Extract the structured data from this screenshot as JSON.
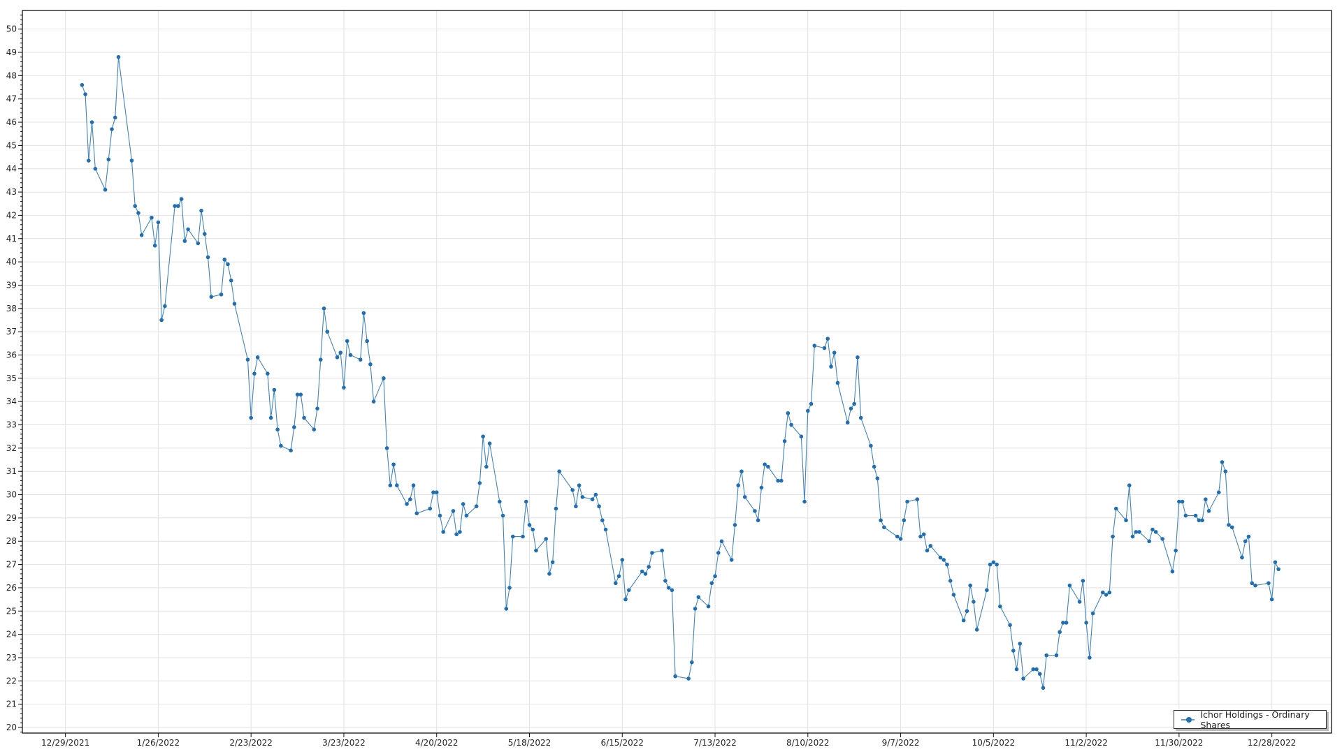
{
  "chart_data": {
    "type": "line",
    "title": "",
    "xlabel": "",
    "ylabel": "",
    "x_tick_labels": [
      "12/29/2021",
      "1/26/2022",
      "2/23/2022",
      "3/23/2022",
      "4/20/2022",
      "5/18/2022",
      "6/15/2022",
      "7/13/2022",
      "8/10/2022",
      "9/7/2022",
      "10/5/2022",
      "11/2/2022",
      "11/30/2022",
      "12/28/2022"
    ],
    "y_tick_labels": [
      "20",
      "21",
      "22",
      "23",
      "24",
      "25",
      "26",
      "27",
      "28",
      "29",
      "30",
      "31",
      "32",
      "33",
      "34",
      "35",
      "36",
      "37",
      "38",
      "39",
      "40",
      "41",
      "42",
      "43",
      "44",
      "45",
      "46",
      "47",
      "48",
      "49",
      "50"
    ],
    "ylim": [
      19.76,
      50.8
    ],
    "xlim": [
      "12/16/2021",
      "1/15/2023"
    ],
    "grid": true,
    "legend_position": "bottom-right",
    "line_color": "#1f6fb2",
    "series": [
      {
        "name": "Ichor Holdings - Ordinary Shares",
        "dates": [
          "1/3/2022",
          "1/4/2022",
          "1/5/2022",
          "1/6/2022",
          "1/7/2022",
          "1/10/2022",
          "1/11/2022",
          "1/12/2022",
          "1/13/2022",
          "1/14/2022",
          "1/18/2022",
          "1/19/2022",
          "1/20/2022",
          "1/21/2022",
          "1/24/2022",
          "1/25/2022",
          "1/26/2022",
          "1/27/2022",
          "1/28/2022",
          "1/31/2022",
          "2/1/2022",
          "2/2/2022",
          "2/3/2022",
          "2/4/2022",
          "2/7/2022",
          "2/8/2022",
          "2/9/2022",
          "2/10/2022",
          "2/11/2022",
          "2/14/2022",
          "2/15/2022",
          "2/16/2022",
          "2/17/2022",
          "2/18/2022",
          "2/22/2022",
          "2/23/2022",
          "2/24/2022",
          "2/25/2022",
          "2/28/2022",
          "3/1/2022",
          "3/2/2022",
          "3/3/2022",
          "3/4/2022",
          "3/7/2022",
          "3/8/2022",
          "3/9/2022",
          "3/10/2022",
          "3/11/2022",
          "3/14/2022",
          "3/15/2022",
          "3/16/2022",
          "3/17/2022",
          "3/18/2022",
          "3/21/2022",
          "3/22/2022",
          "3/23/2022",
          "3/24/2022",
          "3/25/2022",
          "3/28/2022",
          "3/29/2022",
          "3/30/2022",
          "3/31/2022",
          "4/1/2022",
          "4/4/2022",
          "4/5/2022",
          "4/6/2022",
          "4/7/2022",
          "4/8/2022",
          "4/11/2022",
          "4/12/2022",
          "4/13/2022",
          "4/14/2022",
          "4/18/2022",
          "4/19/2022",
          "4/20/2022",
          "4/21/2022",
          "4/22/2022",
          "4/25/2022",
          "4/26/2022",
          "4/27/2022",
          "4/28/2022",
          "4/29/2022",
          "5/2/2022",
          "5/3/2022",
          "5/4/2022",
          "5/5/2022",
          "5/6/2022",
          "5/9/2022",
          "5/10/2022",
          "5/11/2022",
          "5/12/2022",
          "5/13/2022",
          "5/16/2022",
          "5/17/2022",
          "5/18/2022",
          "5/19/2022",
          "5/20/2022",
          "5/23/2022",
          "5/24/2022",
          "5/25/2022",
          "5/26/2022",
          "5/27/2022",
          "5/31/2022",
          "6/1/2022",
          "6/2/2022",
          "6/3/2022",
          "6/6/2022",
          "6/7/2022",
          "6/8/2022",
          "6/9/2022",
          "6/10/2022",
          "6/13/2022",
          "6/14/2022",
          "6/15/2022",
          "6/16/2022",
          "6/17/2022",
          "6/21/2022",
          "6/22/2022",
          "6/23/2022",
          "6/24/2022",
          "6/27/2022",
          "6/28/2022",
          "6/29/2022",
          "6/30/2022",
          "7/1/2022",
          "7/5/2022",
          "7/6/2022",
          "7/7/2022",
          "7/8/2022",
          "7/11/2022",
          "7/12/2022",
          "7/13/2022",
          "7/14/2022",
          "7/15/2022",
          "7/18/2022",
          "7/19/2022",
          "7/20/2022",
          "7/21/2022",
          "7/22/2022",
          "7/25/2022",
          "7/26/2022",
          "7/27/2022",
          "7/28/2022",
          "7/29/2022",
          "8/1/2022",
          "8/2/2022",
          "8/3/2022",
          "8/4/2022",
          "8/5/2022",
          "8/8/2022",
          "8/9/2022",
          "8/10/2022",
          "8/11/2022",
          "8/12/2022",
          "8/15/2022",
          "8/16/2022",
          "8/17/2022",
          "8/18/2022",
          "8/19/2022",
          "8/22/2022",
          "8/23/2022",
          "8/24/2022",
          "8/25/2022",
          "8/26/2022",
          "8/29/2022",
          "8/30/2022",
          "8/31/2022",
          "9/1/2022",
          "9/2/2022",
          "9/6/2022",
          "9/7/2022",
          "9/8/2022",
          "9/9/2022",
          "9/12/2022",
          "9/13/2022",
          "9/14/2022",
          "9/15/2022",
          "9/16/2022",
          "9/19/2022",
          "9/20/2022",
          "9/21/2022",
          "9/22/2022",
          "9/23/2022",
          "9/26/2022",
          "9/27/2022",
          "9/28/2022",
          "9/29/2022",
          "9/30/2022",
          "10/3/2022",
          "10/4/2022",
          "10/5/2022",
          "10/6/2022",
          "10/7/2022",
          "10/10/2022",
          "10/11/2022",
          "10/12/2022",
          "10/13/2022",
          "10/14/2022",
          "10/17/2022",
          "10/18/2022",
          "10/19/2022",
          "10/20/2022",
          "10/21/2022",
          "10/24/2022",
          "10/25/2022",
          "10/26/2022",
          "10/27/2022",
          "10/28/2022",
          "10/31/2022",
          "11/1/2022",
          "11/2/2022",
          "11/3/2022",
          "11/4/2022",
          "11/7/2022",
          "11/8/2022",
          "11/9/2022",
          "11/10/2022",
          "11/11/2022",
          "11/14/2022",
          "11/15/2022",
          "11/16/2022",
          "11/17/2022",
          "11/18/2022",
          "11/21/2022",
          "11/22/2022",
          "11/23/2022",
          "11/25/2022",
          "11/28/2022",
          "11/29/2022",
          "11/30/2022",
          "12/1/2022",
          "12/2/2022",
          "12/5/2022",
          "12/6/2022",
          "12/7/2022",
          "12/8/2022",
          "12/9/2022",
          "12/12/2022",
          "12/13/2022",
          "12/14/2022",
          "12/15/2022",
          "12/16/2022",
          "12/19/2022",
          "12/20/2022",
          "12/21/2022",
          "12/22/2022",
          "12/23/2022",
          "12/27/2022",
          "12/28/2022",
          "12/29/2022",
          "12/30/2022"
        ],
        "values": [
          47.6,
          47.2,
          44.35,
          46.0,
          44.0,
          43.1,
          44.4,
          45.7,
          46.2,
          48.8,
          44.35,
          42.4,
          42.1,
          41.15,
          41.9,
          40.7,
          41.7,
          37.5,
          38.1,
          42.4,
          42.4,
          42.7,
          40.9,
          41.4,
          40.8,
          42.2,
          41.2,
          40.2,
          38.5,
          38.6,
          40.1,
          39.9,
          39.2,
          38.2,
          35.8,
          33.3,
          35.2,
          35.9,
          35.2,
          33.3,
          34.5,
          32.8,
          32.1,
          31.9,
          32.9,
          34.3,
          34.3,
          33.3,
          32.8,
          33.7,
          35.8,
          38.0,
          37.0,
          35.9,
          36.1,
          34.6,
          36.6,
          36.0,
          35.8,
          37.8,
          36.6,
          35.6,
          34.0,
          35.0,
          32.0,
          30.4,
          31.3,
          30.4,
          29.6,
          29.8,
          30.4,
          29.2,
          29.4,
          30.1,
          30.1,
          29.1,
          28.4,
          29.3,
          28.3,
          28.4,
          29.6,
          29.1,
          29.5,
          30.5,
          32.5,
          31.2,
          32.2,
          29.7,
          29.1,
          25.1,
          26.0,
          28.2,
          28.2,
          29.7,
          28.7,
          28.5,
          27.6,
          28.1,
          26.6,
          27.1,
          29.4,
          31.0,
          30.2,
          29.5,
          30.4,
          29.9,
          29.8,
          30.0,
          29.5,
          28.9,
          28.5,
          26.2,
          26.5,
          27.2,
          25.5,
          25.9,
          26.7,
          26.6,
          26.9,
          27.5,
          27.6,
          26.3,
          26.0,
          25.9,
          22.2,
          22.1,
          22.8,
          25.1,
          25.6,
          25.2,
          26.2,
          26.5,
          27.5,
          28.0,
          27.2,
          28.7,
          30.4,
          31.0,
          29.9,
          29.3,
          28.9,
          30.3,
          31.3,
          31.2,
          30.6,
          30.6,
          32.3,
          33.5,
          33.0,
          32.5,
          29.7,
          33.6,
          33.9,
          36.4,
          36.3,
          36.7,
          35.5,
          36.1,
          34.8,
          33.1,
          33.7,
          33.9,
          35.9,
          33.3,
          32.1,
          31.2,
          30.7,
          28.9,
          28.6,
          28.2,
          28.1,
          28.9,
          29.7,
          29.8,
          28.2,
          28.3,
          27.6,
          27.8,
          27.3,
          27.2,
          27.0,
          26.3,
          25.7,
          24.6,
          25.0,
          26.1,
          25.4,
          24.2,
          25.9,
          27.0,
          27.1,
          27.0,
          25.2,
          24.4,
          23.3,
          22.5,
          23.6,
          22.1,
          22.5,
          22.5,
          22.3,
          21.7,
          23.1,
          23.1,
          24.1,
          24.5,
          24.5,
          26.1,
          25.4,
          26.3,
          24.5,
          23.0,
          24.9,
          25.8,
          25.7,
          25.8,
          28.2,
          29.4,
          28.9,
          30.4,
          28.2,
          28.4,
          28.4,
          28.0,
          28.5,
          28.4,
          28.1,
          26.7,
          27.6,
          29.7,
          29.7,
          29.1,
          29.1,
          28.9,
          28.9,
          29.8,
          29.3,
          30.1,
          31.4,
          31.0,
          28.7,
          28.6,
          27.3,
          28.0,
          28.2,
          26.2,
          26.1,
          26.2,
          25.5,
          27.1,
          26.8
        ]
      }
    ]
  }
}
